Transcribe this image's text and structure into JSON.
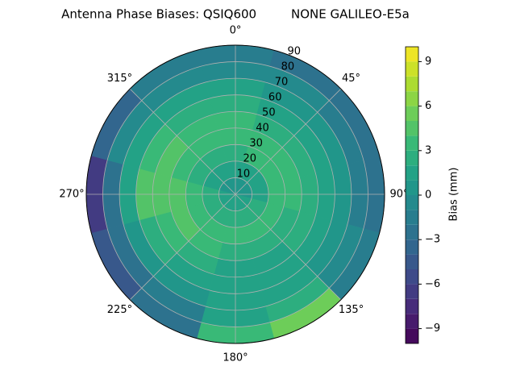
{
  "chart_data": {
    "type": "polar-contour",
    "title": "Antenna Phase Biases: QSIQ600         NONE GALILEO-E5a",
    "colorbar_label": "Bias (mm)",
    "colormap": "viridis",
    "azimuth": [
      0,
      30,
      60,
      90,
      120,
      150,
      180,
      210,
      240,
      270,
      300,
      330
    ],
    "radius": [
      5,
      15,
      25,
      35,
      45,
      55,
      65,
      75,
      85
    ],
    "values": [
      [
        0,
        0,
        0,
        0,
        1,
        1,
        1,
        1,
        1,
        1,
        0,
        0
      ],
      [
        1,
        1,
        1,
        1,
        2,
        2,
        2,
        2,
        2,
        2,
        1,
        1
      ],
      [
        2,
        3,
        3,
        3,
        3,
        3,
        3,
        3,
        3,
        3,
        2,
        2
      ],
      [
        3,
        3,
        3,
        3,
        2,
        2,
        2,
        3,
        4,
        4,
        3,
        3
      ],
      [
        3,
        2,
        2,
        2,
        2,
        1,
        1,
        2,
        3,
        4,
        4,
        3
      ],
      [
        2,
        1,
        1,
        1,
        1,
        1,
        1,
        1,
        2,
        4,
        3,
        2
      ],
      [
        1,
        0,
        0,
        0,
        0,
        1,
        1,
        0,
        0,
        1,
        1,
        1
      ],
      [
        -1,
        -1,
        -2,
        -2,
        -1,
        2,
        1,
        -2,
        -3,
        -3,
        -1,
        -1
      ],
      [
        -2,
        -3,
        -3,
        -3,
        -2,
        5,
        3,
        -3,
        -5,
        -7,
        -4,
        -2
      ]
    ],
    "rlim": [
      0,
      90
    ],
    "rticks": [
      10,
      20,
      30,
      40,
      50,
      60,
      70,
      80,
      90
    ],
    "thetaticks": [
      {
        "value": 0,
        "label": "0°"
      },
      {
        "value": 45,
        "label": "45°"
      },
      {
        "value": 90,
        "label": "90°"
      },
      {
        "value": 135,
        "label": "135°"
      },
      {
        "value": 180,
        "label": "180°"
      },
      {
        "value": 225,
        "label": "225°"
      },
      {
        "value": 270,
        "label": "270°"
      },
      {
        "value": 315,
        "label": "315°"
      }
    ],
    "clim": [
      -10,
      10
    ],
    "levels": [
      -10,
      -9,
      -8,
      -7,
      -6,
      -5,
      -4,
      -3,
      -2,
      -1,
      0,
      1,
      2,
      3,
      4,
      5,
      6,
      7,
      8,
      9,
      10
    ],
    "cticks": [
      {
        "value": -9,
        "label": "−9"
      },
      {
        "value": -6,
        "label": "−6"
      },
      {
        "value": -3,
        "label": "−3"
      },
      0,
      3,
      6,
      9
    ],
    "grid": true
  }
}
